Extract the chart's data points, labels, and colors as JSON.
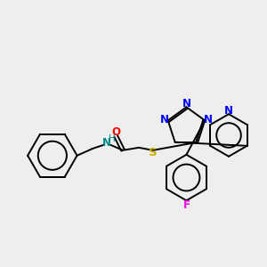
{
  "background_color": "#eeeeee",
  "bond_color": "#000000",
  "atom_colors": {
    "N": "#0000ff",
    "O": "#ff0000",
    "S": "#ccaa00",
    "F": "#ee00ee",
    "NH": "#008888",
    "C": "#000000"
  },
  "figsize": [
    3.0,
    3.0
  ],
  "dpi": 100
}
